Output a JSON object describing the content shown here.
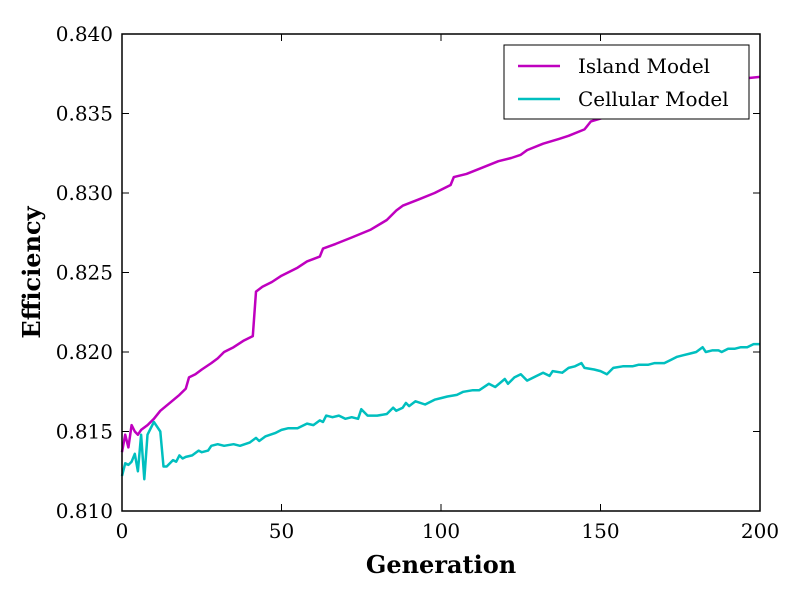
{
  "chart_data": {
    "type": "line",
    "xlabel": "Generation",
    "ylabel": "Efficiency",
    "xlim": [
      0,
      200
    ],
    "ylim": [
      0.81,
      0.84
    ],
    "xticks": [
      "0",
      "50",
      "100",
      "150",
      "200"
    ],
    "yticks": [
      "0.810",
      "0.815",
      "0.820",
      "0.825",
      "0.830",
      "0.835",
      "0.840"
    ],
    "grid": false,
    "legend_position": "top-right",
    "series": [
      {
        "name": "Island Model",
        "color": "#bf00bf",
        "points": [
          [
            0,
            0.8137
          ],
          [
            1,
            0.8148
          ],
          [
            2,
            0.814
          ],
          [
            3,
            0.8154
          ],
          [
            4,
            0.815
          ],
          [
            5,
            0.8148
          ],
          [
            6,
            0.8151
          ],
          [
            8,
            0.8154
          ],
          [
            10,
            0.8158
          ],
          [
            12,
            0.8163
          ],
          [
            15,
            0.8168
          ],
          [
            18,
            0.8173
          ],
          [
            20,
            0.8177
          ],
          [
            21,
            0.8184
          ],
          [
            23,
            0.8186
          ],
          [
            25,
            0.8189
          ],
          [
            28,
            0.8193
          ],
          [
            30,
            0.8196
          ],
          [
            32,
            0.82
          ],
          [
            35,
            0.8203
          ],
          [
            38,
            0.8207
          ],
          [
            41,
            0.821
          ],
          [
            42,
            0.8238
          ],
          [
            44,
            0.8241
          ],
          [
            47,
            0.8244
          ],
          [
            50,
            0.8248
          ],
          [
            55,
            0.8253
          ],
          [
            58,
            0.8257
          ],
          [
            62,
            0.826
          ],
          [
            63,
            0.8265
          ],
          [
            67,
            0.8268
          ],
          [
            72,
            0.8272
          ],
          [
            78,
            0.8277
          ],
          [
            83,
            0.8283
          ],
          [
            86,
            0.8289
          ],
          [
            88,
            0.8292
          ],
          [
            93,
            0.8296
          ],
          [
            98,
            0.83
          ],
          [
            103,
            0.8305
          ],
          [
            104,
            0.831
          ],
          [
            108,
            0.8312
          ],
          [
            113,
            0.8316
          ],
          [
            118,
            0.832
          ],
          [
            122,
            0.8322
          ],
          [
            125,
            0.8324
          ],
          [
            127,
            0.8327
          ],
          [
            132,
            0.8331
          ],
          [
            137,
            0.8334
          ],
          [
            140,
            0.8336
          ],
          [
            145,
            0.834
          ],
          [
            147,
            0.8345
          ],
          [
            152,
            0.8348
          ],
          [
            158,
            0.8352
          ],
          [
            165,
            0.8356
          ],
          [
            172,
            0.836
          ],
          [
            180,
            0.8364
          ],
          [
            188,
            0.8367
          ],
          [
            195,
            0.8372
          ],
          [
            200,
            0.8373
          ]
        ]
      },
      {
        "name": "Cellular Model",
        "color": "#00bfbf",
        "points": [
          [
            0,
            0.8122
          ],
          [
            1,
            0.813
          ],
          [
            2,
            0.8129
          ],
          [
            3,
            0.8131
          ],
          [
            4,
            0.8136
          ],
          [
            5,
            0.8125
          ],
          [
            6,
            0.8148
          ],
          [
            7,
            0.812
          ],
          [
            8,
            0.8148
          ],
          [
            9,
            0.8152
          ],
          [
            10,
            0.8156
          ],
          [
            11,
            0.8153
          ],
          [
            12,
            0.815
          ],
          [
            13,
            0.8128
          ],
          [
            14,
            0.8128
          ],
          [
            16,
            0.8132
          ],
          [
            17,
            0.8131
          ],
          [
            18,
            0.8135
          ],
          [
            19,
            0.8133
          ],
          [
            20,
            0.8134
          ],
          [
            22,
            0.8135
          ],
          [
            24,
            0.8138
          ],
          [
            25,
            0.8137
          ],
          [
            27,
            0.8138
          ],
          [
            28,
            0.8141
          ],
          [
            30,
            0.8142
          ],
          [
            32,
            0.8141
          ],
          [
            35,
            0.8142
          ],
          [
            37,
            0.8141
          ],
          [
            40,
            0.8143
          ],
          [
            42,
            0.8146
          ],
          [
            43,
            0.8144
          ],
          [
            45,
            0.8147
          ],
          [
            48,
            0.8149
          ],
          [
            50,
            0.8151
          ],
          [
            52,
            0.8152
          ],
          [
            55,
            0.8152
          ],
          [
            58,
            0.8155
          ],
          [
            60,
            0.8154
          ],
          [
            62,
            0.8157
          ],
          [
            63,
            0.8156
          ],
          [
            64,
            0.816
          ],
          [
            66,
            0.8159
          ],
          [
            68,
            0.816
          ],
          [
            70,
            0.8158
          ],
          [
            72,
            0.8159
          ],
          [
            74,
            0.8158
          ],
          [
            75,
            0.8164
          ],
          [
            77,
            0.816
          ],
          [
            80,
            0.816
          ],
          [
            83,
            0.8161
          ],
          [
            85,
            0.8165
          ],
          [
            86,
            0.8163
          ],
          [
            88,
            0.8165
          ],
          [
            89,
            0.8168
          ],
          [
            90,
            0.8166
          ],
          [
            92,
            0.8169
          ],
          [
            95,
            0.8167
          ],
          [
            98,
            0.817
          ],
          [
            100,
            0.8171
          ],
          [
            102,
            0.8172
          ],
          [
            105,
            0.8173
          ],
          [
            107,
            0.8175
          ],
          [
            110,
            0.8176
          ],
          [
            112,
            0.8176
          ],
          [
            115,
            0.818
          ],
          [
            117,
            0.8178
          ],
          [
            120,
            0.8183
          ],
          [
            121,
            0.818
          ],
          [
            123,
            0.8184
          ],
          [
            125,
            0.8186
          ],
          [
            127,
            0.8182
          ],
          [
            130,
            0.8185
          ],
          [
            132,
            0.8187
          ],
          [
            134,
            0.8185
          ],
          [
            135,
            0.8188
          ],
          [
            138,
            0.8187
          ],
          [
            140,
            0.819
          ],
          [
            142,
            0.8191
          ],
          [
            144,
            0.8193
          ],
          [
            145,
            0.819
          ],
          [
            148,
            0.8189
          ],
          [
            150,
            0.8188
          ],
          [
            152,
            0.8186
          ],
          [
            154,
            0.819
          ],
          [
            157,
            0.8191
          ],
          [
            160,
            0.8191
          ],
          [
            162,
            0.8192
          ],
          [
            165,
            0.8192
          ],
          [
            167,
            0.8193
          ],
          [
            170,
            0.8193
          ],
          [
            172,
            0.8195
          ],
          [
            174,
            0.8197
          ],
          [
            176,
            0.8198
          ],
          [
            178,
            0.8199
          ],
          [
            180,
            0.82
          ],
          [
            182,
            0.8203
          ],
          [
            183,
            0.82
          ],
          [
            185,
            0.8201
          ],
          [
            187,
            0.8201
          ],
          [
            188,
            0.82
          ],
          [
            190,
            0.8202
          ],
          [
            192,
            0.8202
          ],
          [
            194,
            0.8203
          ],
          [
            196,
            0.8203
          ],
          [
            198,
            0.8205
          ],
          [
            200,
            0.8205
          ]
        ]
      }
    ]
  }
}
